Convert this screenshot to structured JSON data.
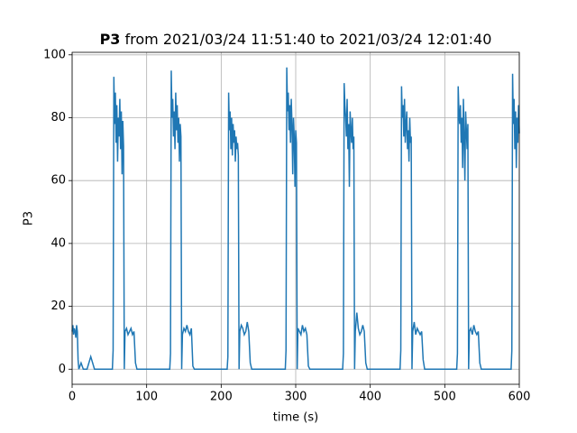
{
  "chart_data": {
    "type": "line",
    "title": {
      "bold": "P3",
      "rest": "from 2021/03/24 11:51:40 to 2021/03/24 12:01:40"
    },
    "xlabel": "time (s)",
    "ylabel": "P3",
    "xlim": [
      0,
      600
    ],
    "ylim": [
      -4.8,
      100.8
    ],
    "xticks": [
      0,
      100,
      200,
      300,
      400,
      500,
      600
    ],
    "yticks": [
      0,
      20,
      40,
      60,
      80,
      100
    ],
    "grid": true,
    "series": [
      {
        "name": "P3",
        "color": "#1f77b4",
        "x": [
          0,
          1,
          2,
          3,
          4,
          5,
          6,
          7,
          8,
          9,
          12,
          15,
          20,
          25,
          30,
          35,
          40,
          45,
          50,
          53,
          54,
          55,
          56,
          57,
          58,
          59,
          60,
          61,
          62,
          63,
          64,
          65,
          66,
          67,
          68,
          69,
          70,
          71,
          73,
          75,
          77,
          79,
          81,
          83,
          85,
          87,
          131,
          132,
          133,
          134,
          135,
          136,
          137,
          138,
          139,
          140,
          141,
          142,
          143,
          144,
          145,
          146,
          147,
          148,
          150,
          152,
          154,
          156,
          158,
          160,
          162,
          164,
          208,
          209,
          210,
          211,
          212,
          213,
          214,
          215,
          216,
          217,
          218,
          219,
          220,
          221,
          222,
          223,
          224,
          225,
          227,
          229,
          231,
          233,
          235,
          237,
          239,
          241,
          286,
          287,
          288,
          289,
          290,
          291,
          292,
          293,
          294,
          295,
          296,
          297,
          298,
          299,
          300,
          301,
          302,
          303,
          305,
          307,
          309,
          311,
          313,
          315,
          317,
          319,
          363,
          364,
          365,
          366,
          367,
          368,
          369,
          370,
          371,
          372,
          373,
          374,
          375,
          376,
          377,
          378,
          379,
          380,
          382,
          384,
          386,
          388,
          390,
          392,
          394,
          396,
          440,
          441,
          442,
          443,
          444,
          445,
          446,
          447,
          448,
          449,
          450,
          451,
          452,
          453,
          454,
          455,
          456,
          457,
          459,
          461,
          463,
          465,
          467,
          469,
          471,
          473,
          516,
          517,
          518,
          519,
          520,
          521,
          522,
          523,
          524,
          525,
          526,
          527,
          528,
          529,
          530,
          531,
          532,
          533,
          535,
          537,
          539,
          541,
          543,
          545,
          547,
          549,
          589,
          590,
          591,
          592,
          593,
          594,
          595,
          596,
          597,
          598,
          599,
          600
        ],
        "values": [
          12,
          14,
          11,
          13,
          12,
          10,
          14,
          12,
          3,
          0,
          2,
          0,
          0,
          4,
          0,
          0,
          0,
          0,
          0,
          0,
          0,
          6,
          93,
          78,
          88,
          72,
          84,
          66,
          80,
          74,
          86,
          70,
          82,
          62,
          79,
          71,
          0,
          12,
          13,
          11,
          12,
          13,
          11,
          12,
          2,
          0,
          0,
          5,
          95,
          80,
          86,
          74,
          82,
          70,
          88,
          76,
          84,
          72,
          80,
          66,
          78,
          74,
          0,
          11,
          13,
          12,
          14,
          12,
          11,
          13,
          1,
          0,
          0,
          4,
          88,
          76,
          82,
          70,
          80,
          68,
          78,
          72,
          76,
          66,
          74,
          70,
          72,
          68,
          0,
          12,
          14,
          13,
          11,
          12,
          15,
          12,
          2,
          0,
          0,
          6,
          96,
          82,
          88,
          76,
          84,
          72,
          86,
          78,
          62,
          80,
          74,
          58,
          76,
          72,
          0,
          13,
          12,
          11,
          14,
          12,
          13,
          11,
          1,
          0,
          0,
          5,
          91,
          84,
          80,
          74,
          86,
          70,
          78,
          58,
          82,
          76,
          72,
          80,
          70,
          74,
          0,
          12,
          18,
          13,
          11,
          12,
          14,
          12,
          2,
          0,
          0,
          6,
          90,
          80,
          84,
          74,
          86,
          72,
          78,
          82,
          70,
          76,
          66,
          80,
          72,
          74,
          0,
          12,
          15,
          11,
          13,
          12,
          11,
          12,
          3,
          0,
          0,
          5,
          90,
          82,
          78,
          84,
          72,
          80,
          64,
          86,
          74,
          60,
          82,
          76,
          70,
          78,
          0,
          12,
          13,
          11,
          14,
          12,
          11,
          12,
          2,
          0,
          0,
          6,
          94,
          78,
          86,
          70,
          82,
          64,
          80,
          72,
          84,
          75
        ]
      }
    ]
  }
}
